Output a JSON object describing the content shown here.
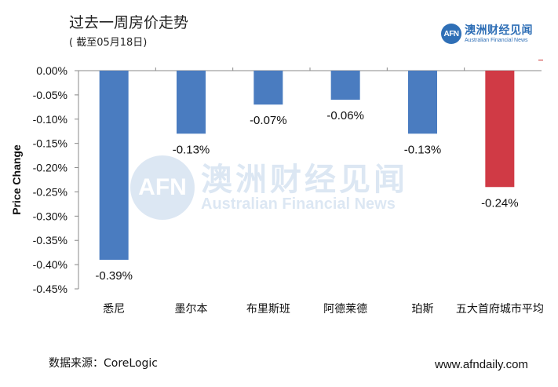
{
  "header": {
    "title": "过去一周房价走势",
    "subtitle": "( 截至05月18日)"
  },
  "logo": {
    "badge": "AFN",
    "name_cn": "澳洲财经见闻",
    "name_en": "Australian Financial News"
  },
  "watermark": {
    "badge": "AFN",
    "name_cn": "澳洲财经见闻",
    "name_en": "Australian Financial News"
  },
  "footer": {
    "source": "数据来源：CoreLogic",
    "website": "www.afndaily.com"
  },
  "colors": {
    "city_bar": "#4a7cc0",
    "average_bar": "#d03a45",
    "axis": "#888888",
    "brand": "#2f6fb6"
  },
  "chart_data": {
    "type": "bar",
    "title": "过去一周房价走势",
    "xlabel": "",
    "ylabel": "Price Change",
    "categories": [
      "悉尼",
      "墨尔本",
      "布里斯班",
      "阿德莱德",
      "珀斯",
      "五大首府城市平均"
    ],
    "values": [
      -0.39,
      -0.13,
      -0.07,
      -0.06,
      -0.13,
      -0.24
    ],
    "value_labels": [
      "-0.39%",
      "-0.13%",
      "-0.07%",
      "-0.06%",
      "-0.13%",
      "-0.24%"
    ],
    "highlight_index": 5,
    "ylim": [
      -0.45,
      0.0
    ],
    "yticks": [
      0.0,
      -0.05,
      -0.1,
      -0.15,
      -0.2,
      -0.25,
      -0.3,
      -0.35,
      -0.4,
      -0.45
    ],
    "ytick_labels": [
      "0.00%",
      "-0.05%",
      "-0.10%",
      "-0.15%",
      "-0.20%",
      "-0.25%",
      "-0.30%",
      "-0.35%",
      "-0.40%",
      "-0.45%"
    ],
    "grid": false,
    "legend": "none"
  }
}
